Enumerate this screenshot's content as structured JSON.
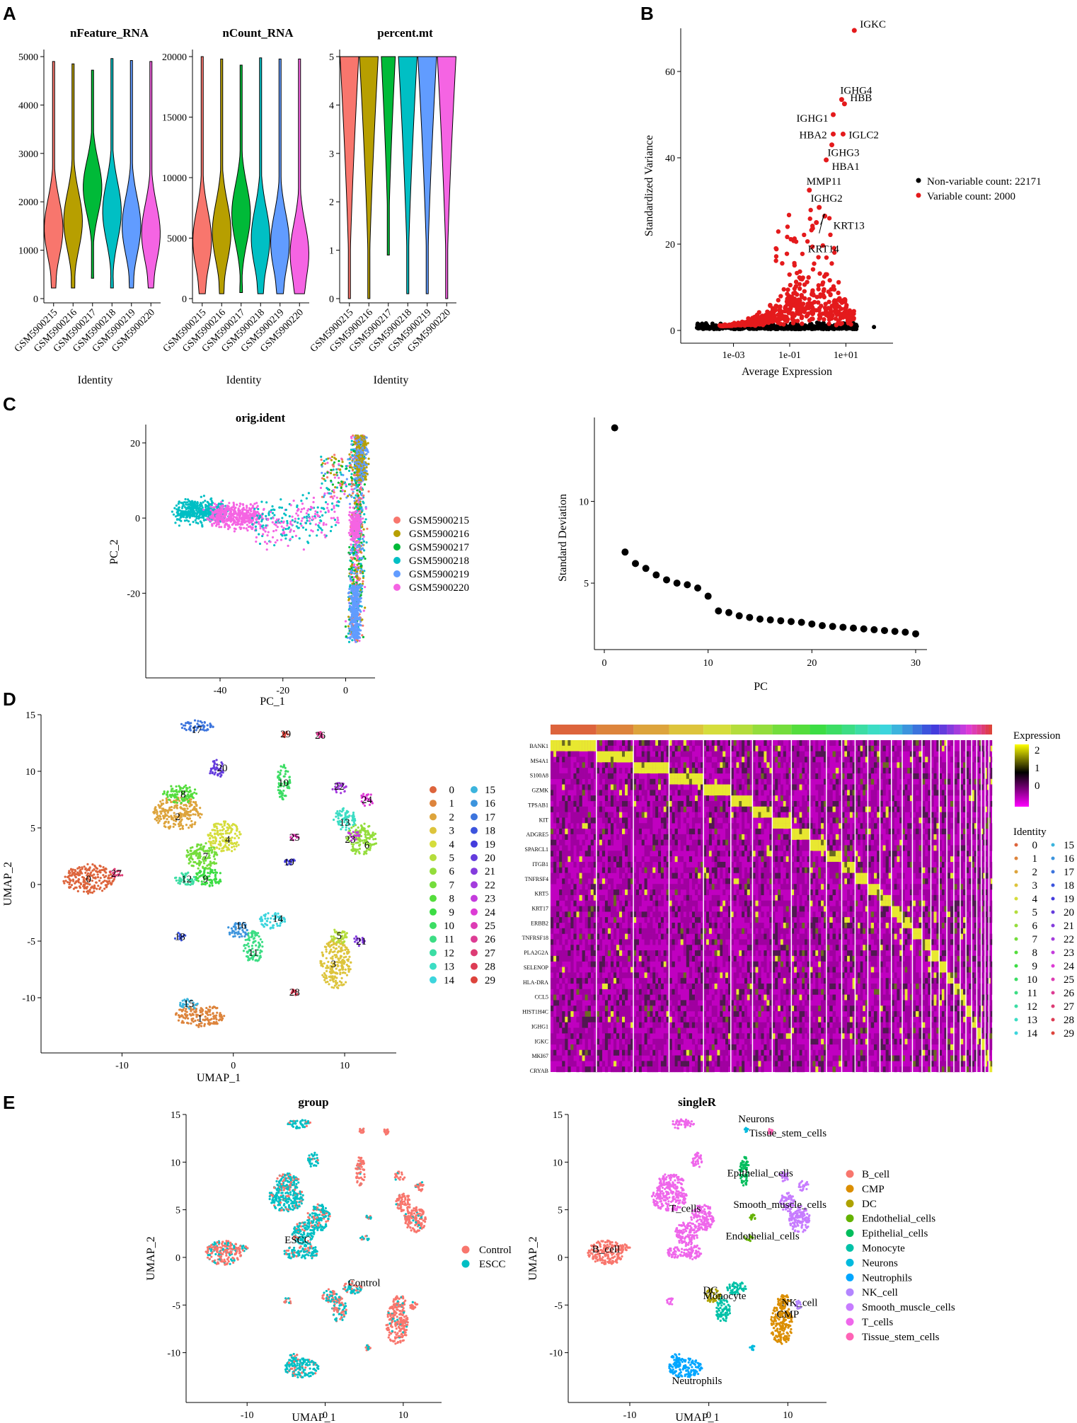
{
  "panels": {
    "a": "A",
    "b": "B",
    "c": "C",
    "d": "D",
    "e": "E"
  },
  "colors": {
    "samples": [
      "#F8766D",
      "#B79F00",
      "#00BA38",
      "#00BFC4",
      "#619CFF",
      "#F564E3"
    ],
    "variable": "#E41A1C",
    "nonvariable": "#000000",
    "heat_low": "#FF00FF",
    "heat_mid": "#000000",
    "heat_high": "#FFFF00"
  },
  "chart_data": [
    {
      "id": "a",
      "type": "violin",
      "xlabel": "Identity",
      "samples": [
        "GSM5900215",
        "GSM5900216",
        "GSM5900217",
        "GSM5900218",
        "GSM5900219",
        "GSM5900220"
      ],
      "subplots": [
        {
          "title": "nFeature_RNA",
          "ylim": [
            0,
            5000
          ],
          "yticks": [
            0,
            1000,
            2000,
            3000,
            4000,
            5000
          ],
          "ranges": [
            [
              220,
              4900
            ],
            [
              220,
              4850
            ],
            [
              420,
              4720
            ],
            [
              220,
              4960
            ],
            [
              220,
              4920
            ],
            [
              220,
              4900
            ]
          ],
          "modes": [
            1450,
            1600,
            2300,
            1800,
            1500,
            1350
          ]
        },
        {
          "title": "nCount_RNA",
          "ylim": [
            0,
            20000
          ],
          "yticks": [
            0,
            5000,
            10000,
            15000,
            20000
          ],
          "ranges": [
            [
              400,
              20000
            ],
            [
              400,
              19800
            ],
            [
              500,
              19300
            ],
            [
              400,
              19900
            ],
            [
              400,
              19800
            ],
            [
              400,
              19800
            ]
          ],
          "modes": [
            4800,
            5500,
            7000,
            5000,
            4600,
            3700
          ]
        },
        {
          "title": "percent.mt",
          "ylim": [
            0,
            5
          ],
          "yticks": [
            0,
            1,
            2,
            3,
            4,
            5
          ],
          "ranges": [
            [
              0,
              5
            ],
            [
              0,
              5
            ],
            [
              0.9,
              5
            ],
            [
              0.1,
              5
            ],
            [
              0.1,
              5
            ],
            [
              0,
              5
            ]
          ],
          "modes": [
            4.5,
            4.6,
            4.6,
            4.5,
            4.6,
            4.4
          ]
        }
      ]
    },
    {
      "id": "b",
      "type": "scatter",
      "xscale": "log10",
      "xlabel": "Average Expression",
      "ylabel": "Standardized Variance",
      "xticks": [
        "1e-03",
        "1e-01",
        "1e+01"
      ],
      "yticks": [
        0,
        20,
        40,
        60
      ],
      "ylim": [
        0,
        70
      ],
      "legend": [
        "Non-variable count: 22171",
        "Variable count: 2000"
      ],
      "genes": [
        {
          "name": "IGKC",
          "x": 1.3,
          "y": 69.5
        },
        {
          "name": "IGHG4",
          "x": 0.85,
          "y": 53.5
        },
        {
          "name": "HBB",
          "x": 0.95,
          "y": 52.5
        },
        {
          "name": "IGHG1",
          "x": 0.55,
          "y": 50.0
        },
        {
          "name": "HBA2",
          "x": 0.55,
          "y": 45.5
        },
        {
          "name": "IGLC2",
          "x": 0.9,
          "y": 45.5
        },
        {
          "name": "IGHG3",
          "x": 0.5,
          "y": 43.0
        },
        {
          "name": "HBA1",
          "x": 0.3,
          "y": 39.5
        },
        {
          "name": "MMP11",
          "x": -0.3,
          "y": 32.5
        },
        {
          "name": "IGHG2",
          "x": 0.05,
          "y": 28.5
        },
        {
          "name": "KRT13",
          "x": 0.25,
          "y": 26.5
        },
        {
          "name": "KRT14",
          "x": -0.05,
          "y": 25.0
        }
      ]
    },
    {
      "id": "c_pca",
      "type": "scatter",
      "title": "orig.ident",
      "xlabel": "PC_1",
      "ylabel": "PC_2",
      "xticks": [
        -40,
        -20,
        0
      ],
      "yticks": [
        -20,
        0,
        20
      ],
      "legend": [
        "GSM5900215",
        "GSM5900216",
        "GSM5900217",
        "GSM5900218",
        "GSM5900219",
        "GSM5900220"
      ]
    },
    {
      "id": "c_elbow",
      "type": "scatter",
      "xlabel": "PC",
      "ylabel": "Standard Deviation",
      "xticks": [
        0,
        10,
        20,
        30
      ],
      "yticks": [
        5,
        10
      ],
      "x": [
        1,
        2,
        3,
        4,
        5,
        6,
        7,
        8,
        9,
        10,
        11,
        12,
        13,
        14,
        15,
        16,
        17,
        18,
        19,
        20,
        21,
        22,
        23,
        24,
        25,
        26,
        27,
        28,
        29,
        30
      ],
      "y": [
        14.5,
        6.9,
        6.2,
        5.9,
        5.5,
        5.2,
        5.0,
        4.9,
        4.7,
        4.2,
        3.3,
        3.2,
        3.0,
        2.9,
        2.8,
        2.75,
        2.7,
        2.65,
        2.6,
        2.5,
        2.4,
        2.35,
        2.3,
        2.25,
        2.2,
        2.15,
        2.1,
        2.05,
        2.0,
        1.9
      ]
    },
    {
      "id": "d_umap",
      "type": "scatter",
      "xlabel": "UMAP_1",
      "ylabel": "UMAP_2",
      "xticks": [
        -10,
        0,
        10
      ],
      "yticks": [
        -10,
        -5,
        0,
        5,
        10,
        15
      ],
      "legend": [
        "0",
        "1",
        "2",
        "3",
        "4",
        "5",
        "6",
        "7",
        "8",
        "9",
        "10",
        "11",
        "12",
        "13",
        "14",
        "15",
        "16",
        "17",
        "18",
        "19",
        "20",
        "21",
        "22",
        "23",
        "24",
        "25",
        "26",
        "27",
        "28",
        "29"
      ],
      "clusters": [
        {
          "id": "0",
          "x": -13,
          "y": 0.5
        },
        {
          "id": "1",
          "x": -3,
          "y": -11.8
        },
        {
          "id": "2",
          "x": -5,
          "y": 6
        },
        {
          "id": "3",
          "x": 9,
          "y": -7
        },
        {
          "id": "4",
          "x": -0.5,
          "y": 4
        },
        {
          "id": "5",
          "x": 9.5,
          "y": -4.5
        },
        {
          "id": "6",
          "x": 12,
          "y": 3.5
        },
        {
          "id": "7",
          "x": -2.5,
          "y": 2.5
        },
        {
          "id": "8",
          "x": -4.5,
          "y": 8
        },
        {
          "id": "9",
          "x": -2.5,
          "y": 0.5
        },
        {
          "id": "10",
          "x": 4.5,
          "y": 9
        },
        {
          "id": "11",
          "x": 1.8,
          "y": -6
        },
        {
          "id": "12",
          "x": -4.2,
          "y": 0.5
        },
        {
          "id": "13",
          "x": 10,
          "y": 5.5
        },
        {
          "id": "14",
          "x": 4,
          "y": -3
        },
        {
          "id": "15",
          "x": -4,
          "y": -10.5
        },
        {
          "id": "16",
          "x": 0.7,
          "y": -3.6
        },
        {
          "id": "17",
          "x": -3.3,
          "y": 13.7
        },
        {
          "id": "18",
          "x": -4.8,
          "y": -4.6
        },
        {
          "id": "19",
          "x": 5,
          "y": 2
        },
        {
          "id": "20",
          "x": -1,
          "y": 10.3
        },
        {
          "id": "21",
          "x": 11.5,
          "y": -5
        },
        {
          "id": "22",
          "x": 9.5,
          "y": 8.7
        },
        {
          "id": "23",
          "x": 10.5,
          "y": 4
        },
        {
          "id": "24",
          "x": 12,
          "y": 7.5
        },
        {
          "id": "25",
          "x": 5.5,
          "y": 4.2
        },
        {
          "id": "26",
          "x": 7.8,
          "y": 13.2
        },
        {
          "id": "27",
          "x": -10.5,
          "y": 1
        },
        {
          "id": "28",
          "x": 5.5,
          "y": -9.5
        },
        {
          "id": "29",
          "x": 4.7,
          "y": 13.3
        }
      ]
    },
    {
      "id": "d_heatmap",
      "type": "heatmap",
      "colorbar_title": "Expression",
      "colorbar_ticks": [
        2,
        1,
        0
      ],
      "identity_title": "Identity",
      "identity": [
        "0",
        "1",
        "2",
        "3",
        "4",
        "5",
        "6",
        "7",
        "8",
        "9",
        "10",
        "11",
        "12",
        "13",
        "14",
        "15",
        "16",
        "17",
        "18",
        "19",
        "20",
        "21",
        "22",
        "23",
        "24",
        "25",
        "26",
        "27",
        "28",
        "29"
      ],
      "cluster_fractions": [
        0.072,
        0.058,
        0.056,
        0.054,
        0.043,
        0.034,
        0.031,
        0.03,
        0.029,
        0.026,
        0.024,
        0.021,
        0.02,
        0.019,
        0.018,
        0.017,
        0.016,
        0.015,
        0.014,
        0.013,
        0.012,
        0.011,
        0.01,
        0.009,
        0.009,
        0.008,
        0.007,
        0.006,
        0.006,
        0.005
      ],
      "rows": 60,
      "visible_genes": [
        "BANK1",
        "MS4A1",
        "S100A8",
        "GZMK",
        "TPSAB1",
        "KIT",
        "ADGRE5",
        "SPARCL1",
        "ITGB1",
        "TNFRSF4",
        "KRT5",
        "KRT17",
        "ERBB2",
        "TNFRSF18",
        "PLA2G2A",
        "SELENOP",
        "HLA-DRA",
        "CCL5",
        "HIST1H4C",
        "IGHG1",
        "IGKC",
        "MKI67",
        "CRYAB"
      ]
    },
    {
      "id": "e_group",
      "type": "scatter",
      "title": "group",
      "xlabel": "UMAP_1",
      "ylabel": "UMAP_2",
      "xticks": [
        -10,
        0,
        10
      ],
      "yticks": [
        -10,
        -5,
        0,
        5,
        10,
        15
      ],
      "legend": [
        "Control",
        "ESCC"
      ],
      "annotations": [
        {
          "text": "ESCC",
          "x": -3.5,
          "y": 1.5
        },
        {
          "text": "Control",
          "x": 5,
          "y": -3
        }
      ]
    },
    {
      "id": "e_singler",
      "type": "scatter",
      "title": "singleR",
      "xlabel": "UMAP_1",
      "ylabel": "UMAP_2",
      "xticks": [
        -10,
        0,
        10
      ],
      "yticks": [
        -10,
        -5,
        0,
        5,
        10,
        15
      ],
      "legend": [
        "B_cell",
        "CMP",
        "DC",
        "Endothelial_cells",
        "Epithelial_cells",
        "Monocyte",
        "Neurons",
        "Neutrophils",
        "NK_cell",
        "Smooth_muscle_cells",
        "T_cells",
        "Tissue_stem_cells"
      ],
      "legend_colors": [
        "#F8766D",
        "#DB8E00",
        "#AEA200",
        "#64B200",
        "#00BD5C",
        "#00C1A7",
        "#00BADE",
        "#00A6FF",
        "#B385FF",
        "#C77CFF",
        "#EF67EB",
        "#FF63B6"
      ],
      "annotations": [
        {
          "text": "Neurons",
          "x": 6,
          "y": 14.2
        },
        {
          "text": "Tissue_stem_cells",
          "x": 10,
          "y": 12.7
        },
        {
          "text": "Epithelial_cells",
          "x": 6.5,
          "y": 8.5
        },
        {
          "text": "T_cells",
          "x": -3,
          "y": 4.8
        },
        {
          "text": "Smooth_muscle_cells",
          "x": 9,
          "y": 5.2
        },
        {
          "text": "Endothelial_cells",
          "x": 6.8,
          "y": 1.9
        },
        {
          "text": "B_cell",
          "x": -13,
          "y": 0.5
        },
        {
          "text": "DC",
          "x": 0.2,
          "y": -3.8
        },
        {
          "text": "Monocyte",
          "x": 2,
          "y": -4.4
        },
        {
          "text": "NK_cell",
          "x": 11.5,
          "y": -5.1
        },
        {
          "text": "CMP",
          "x": 10,
          "y": -6.3
        },
        {
          "text": "Neutrophils",
          "x": -1.5,
          "y": -13.3
        }
      ]
    }
  ]
}
